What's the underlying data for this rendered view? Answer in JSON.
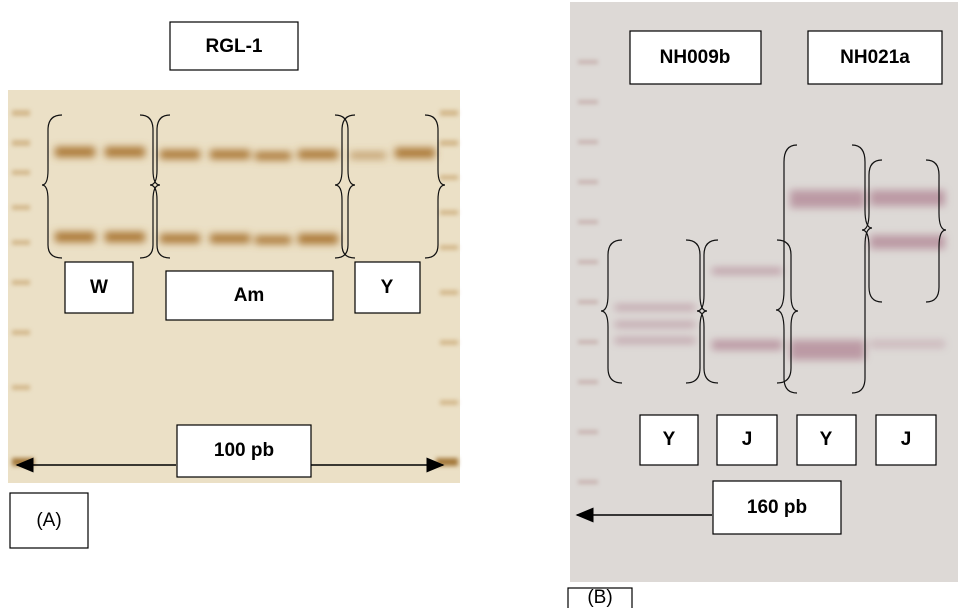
{
  "panel_a": {
    "title": "RGL-1",
    "groups": [
      "W",
      "Am",
      "Y"
    ],
    "marker": "100 pb",
    "label": "(A)"
  },
  "panel_b": {
    "loci": [
      "NH009b",
      "NH021a"
    ],
    "groups": [
      "Y",
      "J",
      "Y",
      "J"
    ],
    "marker": "160 pb",
    "label": "(B)"
  }
}
